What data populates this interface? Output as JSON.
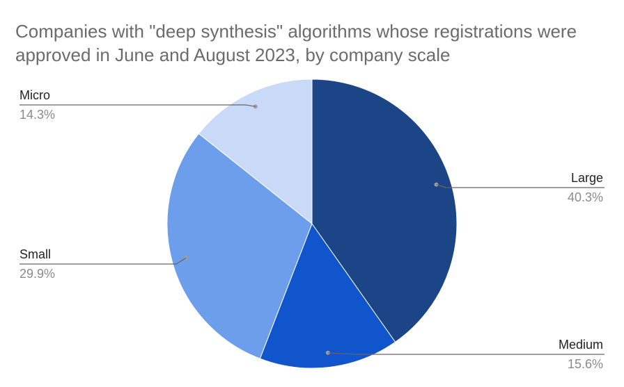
{
  "chart_data": {
    "type": "pie",
    "title": "Companies with \"deep synthesis\" algorithms whose registrations were approved in June and August 2023, by company scale",
    "legend": "none",
    "slices": [
      {
        "label": "Large",
        "value": 40.3,
        "value_label": "40.3%",
        "color": "#1c4587"
      },
      {
        "label": "Medium",
        "value": 15.6,
        "value_label": "15.6%",
        "color": "#1155cc"
      },
      {
        "label": "Small",
        "value": 29.9,
        "value_label": "29.9%",
        "color": "#6d9eeb"
      },
      {
        "label": "Micro",
        "value": 14.3,
        "value_label": "14.3%",
        "color": "#c9daf8"
      }
    ]
  }
}
